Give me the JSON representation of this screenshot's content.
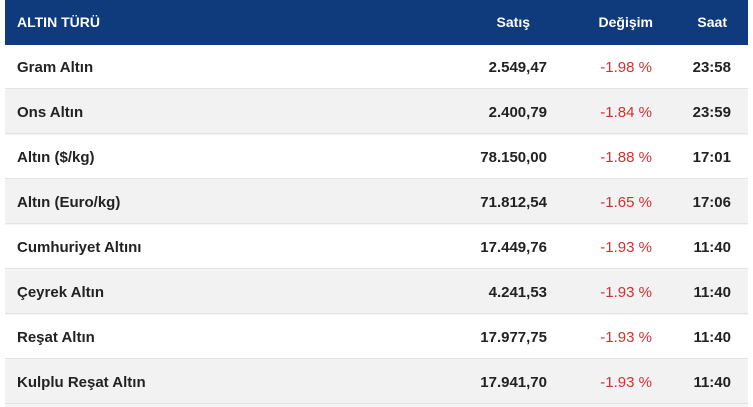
{
  "header": {
    "name": "ALTIN TÜRÜ",
    "price": "Satış",
    "change": "Değişim",
    "time": "Saat"
  },
  "rows": [
    {
      "name": "Gram Altın",
      "price": "2.549,47",
      "change": "-1.98 %",
      "time": "23:58"
    },
    {
      "name": "Ons Altın",
      "price": "2.400,79",
      "change": "-1.84 %",
      "time": "23:59"
    },
    {
      "name": "Altın ($/kg)",
      "price": "78.150,00",
      "change": "-1.88 %",
      "time": "17:01"
    },
    {
      "name": "Altın (Euro/kg)",
      "price": "71.812,54",
      "change": "-1.65 %",
      "time": "17:06"
    },
    {
      "name": "Cumhuriyet Altını",
      "price": "17.449,76",
      "change": "-1.93 %",
      "time": "11:40"
    },
    {
      "name": "Çeyrek Altın",
      "price": "4.241,53",
      "change": "-1.93 %",
      "time": "11:40"
    },
    {
      "name": "Reşat Altın",
      "price": "17.977,75",
      "change": "-1.93 %",
      "time": "11:40"
    },
    {
      "name": "Kulplu Reşat Altın",
      "price": "17.941,70",
      "change": "-1.93 %",
      "time": "11:40"
    }
  ],
  "colors": {
    "header_bg": "#0f3a7c",
    "negative_change": "#d32f2f"
  }
}
